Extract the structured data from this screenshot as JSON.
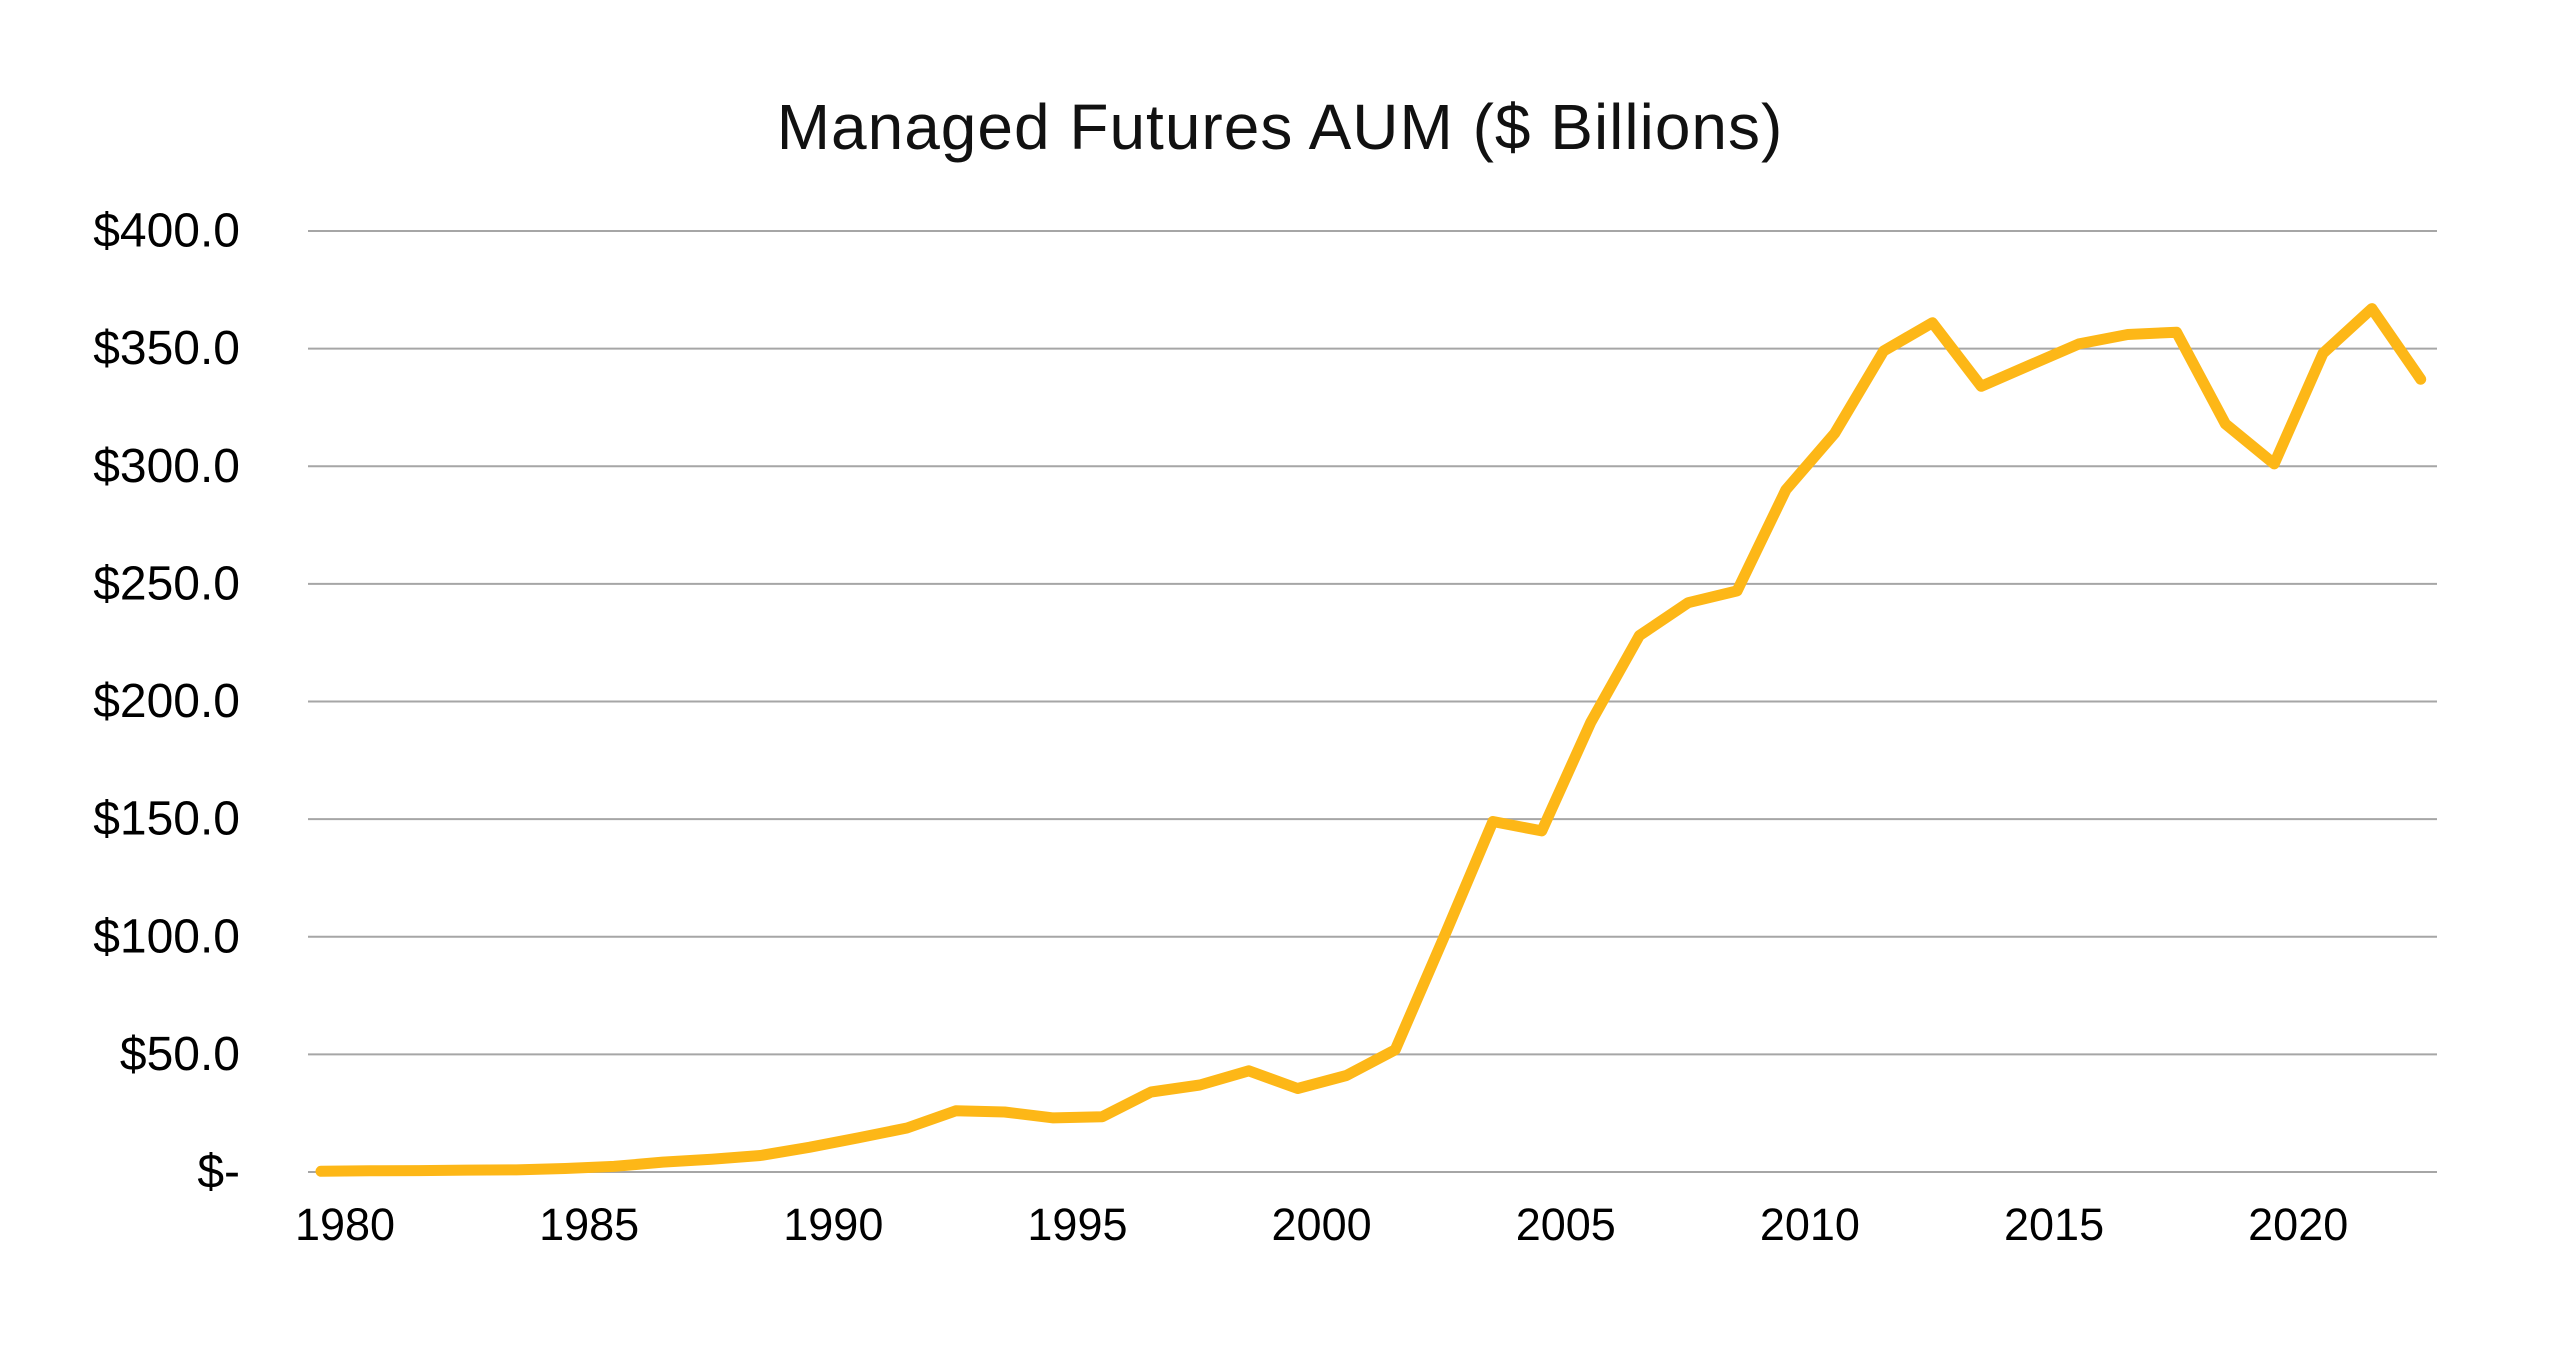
{
  "chart_data": {
    "type": "line",
    "title": "Managed Futures AUM ($ Billions)",
    "series_name": "Managed Futures AUM",
    "xlabel": "",
    "ylabel": "",
    "x_range": [
      1980,
      2023
    ],
    "ylim": [
      0,
      400
    ],
    "y_tick_step": 50,
    "grid": "horizontal",
    "legend": "none",
    "x": [
      1980,
      1981,
      1982,
      1983,
      1984,
      1985,
      1986,
      1987,
      1988,
      1989,
      1990,
      1991,
      1992,
      1993,
      1994,
      1995,
      1996,
      1997,
      1998,
      1999,
      2000,
      2001,
      2002,
      2003,
      2004,
      2005,
      2006,
      2007,
      2008,
      2009,
      2010,
      2011,
      2012,
      2013,
      2014,
      2015,
      2016,
      2017,
      2018,
      2019,
      2020,
      2021,
      2022,
      2023
    ],
    "values": [
      0.3,
      0.5,
      0.6,
      0.8,
      0.9,
      1.5,
      2.4,
      4.2,
      5.4,
      7.0,
      10.5,
      14.5,
      18.7,
      26.0,
      25.5,
      23.0,
      23.5,
      34.0,
      37.0,
      43.0,
      35.5,
      41.0,
      52.0,
      100.0,
      149.0,
      145.0,
      191.0,
      228.0,
      242.0,
      247.0,
      290.0,
      314.0,
      349.0,
      361.0,
      334.0,
      343.0,
      352.0,
      356.0,
      357.0,
      318.0,
      301.0,
      348.0,
      367.0,
      337.0
    ],
    "y_ticks": [
      {
        "value": 0,
        "label": "$-"
      },
      {
        "value": 50,
        "label": "$50.0"
      },
      {
        "value": 100,
        "label": "$100.0"
      },
      {
        "value": 150,
        "label": "$150.0"
      },
      {
        "value": 200,
        "label": "$200.0"
      },
      {
        "value": 250,
        "label": "$250.0"
      },
      {
        "value": 300,
        "label": "$300.0"
      },
      {
        "value": 350,
        "label": "$350.0"
      },
      {
        "value": 400,
        "label": "$400.0"
      }
    ],
    "x_ticks": [
      {
        "value": 1980,
        "label": "1980"
      },
      {
        "value": 1985,
        "label": "1985"
      },
      {
        "value": 1990,
        "label": "1990"
      },
      {
        "value": 1995,
        "label": "1995"
      },
      {
        "value": 2000,
        "label": "2000"
      },
      {
        "value": 2005,
        "label": "2005"
      },
      {
        "value": 2010,
        "label": "2010"
      },
      {
        "value": 2015,
        "label": "2015"
      },
      {
        "value": 2020,
        "label": "2020"
      }
    ],
    "colors": {
      "line": "#FDB717",
      "gridline": "#A6A6A6",
      "text": "#000000",
      "background": "#FFFFFF"
    }
  }
}
